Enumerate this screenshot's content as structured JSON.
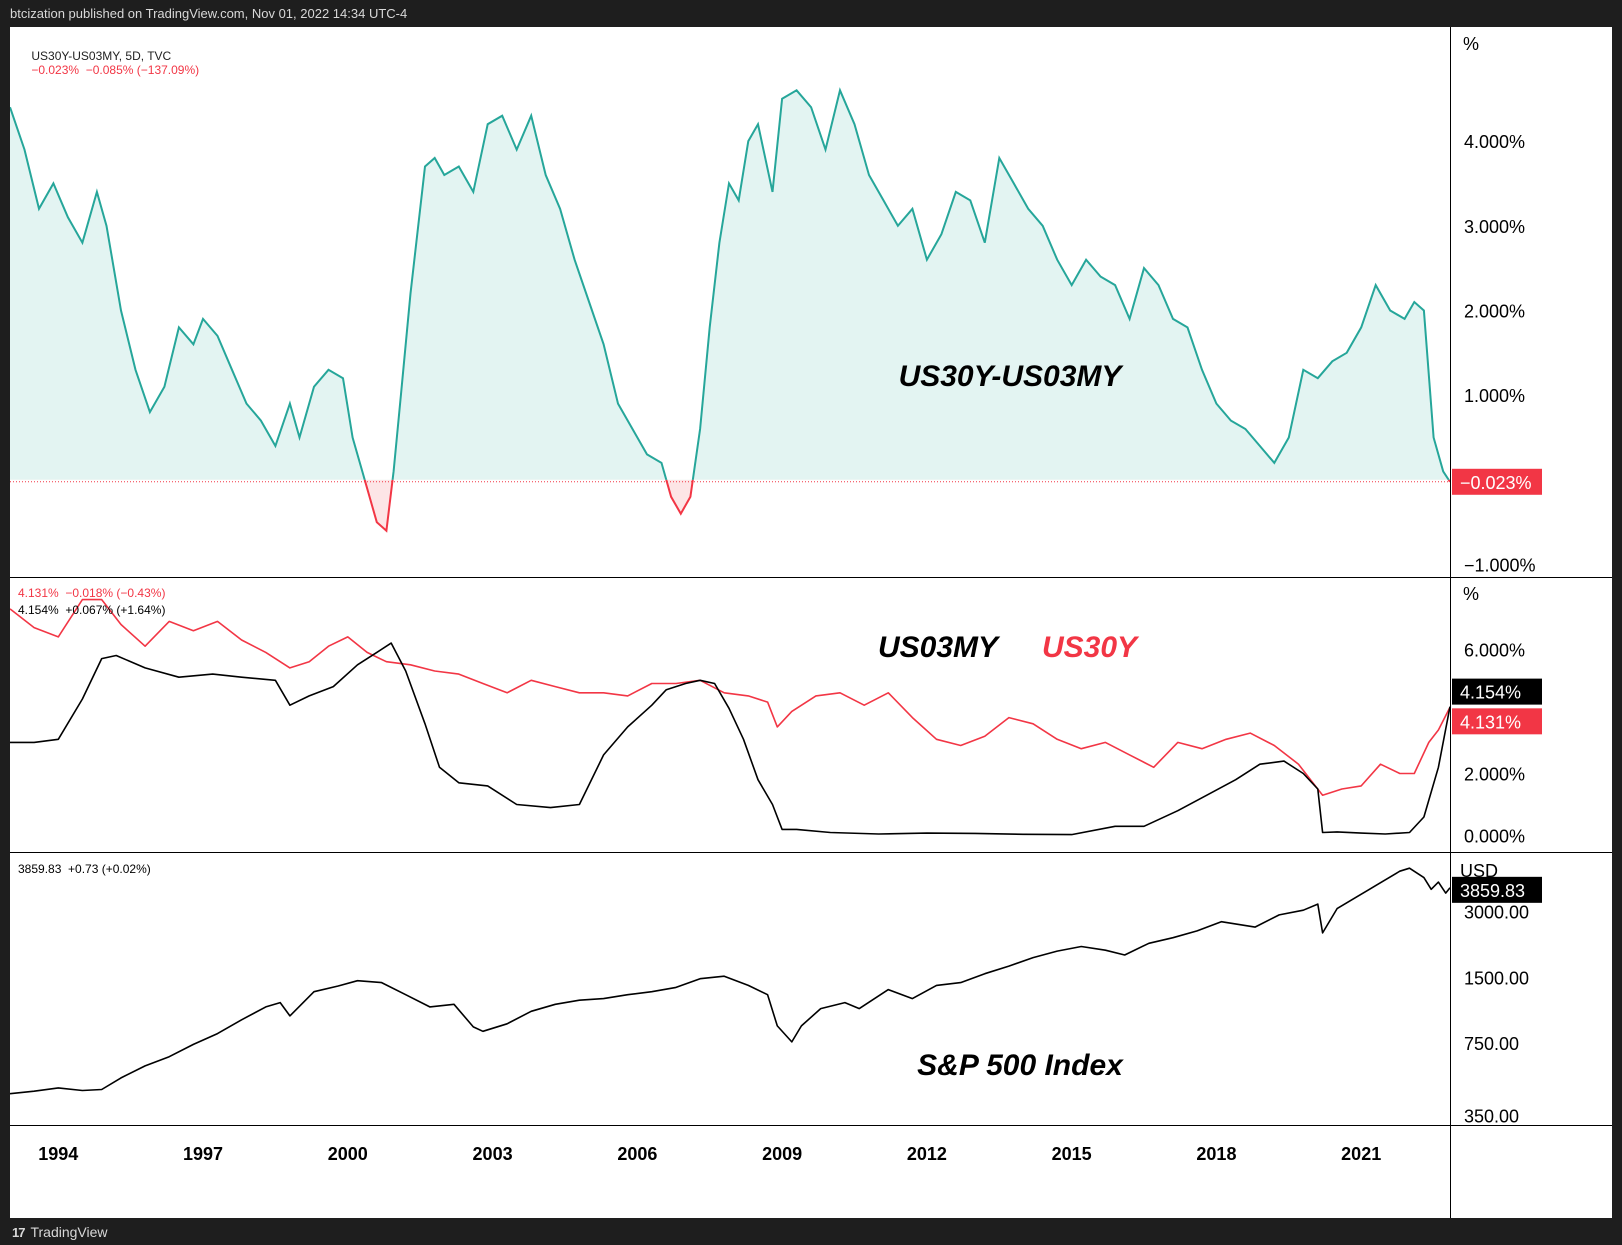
{
  "header": {
    "publish_text": "btcization published on TradingView.com, Nov 01, 2022 14:34 UTC-4"
  },
  "footer": {
    "brand": "TradingView",
    "logo_glyph": "17"
  },
  "colors": {
    "teal": "#26a69a",
    "teal_fill": "#e3f4f2",
    "red": "#f23645",
    "black": "#000000",
    "grid_border": "#000000"
  },
  "x_axis": {
    "start_year": 1993.0,
    "end_year": 2022.84,
    "tick_labels": [
      "1994",
      "1997",
      "2000",
      "2003",
      "2006",
      "2009",
      "2012",
      "2015",
      "2018",
      "2021"
    ],
    "tick_years": [
      1994,
      1997,
      2000,
      2003,
      2006,
      2009,
      2012,
      2015,
      2018,
      2021
    ]
  },
  "chart_data": [
    {
      "type": "area",
      "legend": {
        "symbol": "US30Y-US03MY, 5D, TVC",
        "change": "−0.023%  −0.085% (−137.09%)"
      },
      "annotation": "US30Y-US03MY",
      "unit_label": "%",
      "y_ticks": [
        "4.000%",
        "3.000%",
        "2.000%",
        "1.000%",
        "−1.000%"
      ],
      "y_tick_values": [
        4,
        3,
        2,
        1,
        -1
      ],
      "ylim": [
        -1.1,
        5.3
      ],
      "last_value_label": "−0.023%",
      "last_value": -0.023,
      "series": [
        {
          "x": [
            1993.0,
            1993.3,
            1993.6,
            1993.9,
            1994.2,
            1994.5,
            1994.8,
            1995.0,
            1995.3,
            1995.6,
            1995.9,
            1996.2,
            1996.5,
            1996.8,
            1997.0,
            1997.3,
            1997.6,
            1997.9,
            1998.2,
            1998.5,
            1998.8,
            1999.0,
            1999.3,
            1999.6,
            1999.9,
            2000.1,
            2000.3,
            2000.6,
            2000.8,
            2000.95,
            2001.1,
            2001.3,
            2001.6,
            2001.8,
            2002.0,
            2002.3,
            2002.6,
            2002.9,
            2003.2,
            2003.5,
            2003.8,
            2004.1,
            2004.4,
            2004.7,
            2005.0,
            2005.3,
            2005.6,
            2005.9,
            2006.2,
            2006.5,
            2006.7,
            2006.9,
            2007.1,
            2007.3,
            2007.5,
            2007.7,
            2007.9,
            2008.1,
            2008.3,
            2008.5,
            2008.8,
            2009.0,
            2009.3,
            2009.6,
            2009.9,
            2010.2,
            2010.5,
            2010.8,
            2011.1,
            2011.4,
            2011.7,
            2012.0,
            2012.3,
            2012.6,
            2012.9,
            2013.2,
            2013.5,
            2013.8,
            2014.1,
            2014.4,
            2014.7,
            2015.0,
            2015.3,
            2015.6,
            2015.9,
            2016.2,
            2016.5,
            2016.8,
            2017.1,
            2017.4,
            2017.7,
            2018.0,
            2018.3,
            2018.6,
            2018.9,
            2019.2,
            2019.5,
            2019.8,
            2020.1,
            2020.4,
            2020.7,
            2021.0,
            2021.3,
            2021.6,
            2021.9,
            2022.1,
            2022.3,
            2022.5,
            2022.7,
            2022.84
          ],
          "values": [
            4.4,
            3.9,
            3.2,
            3.5,
            3.1,
            2.8,
            3.4,
            3.0,
            2.0,
            1.3,
            0.8,
            1.1,
            1.8,
            1.6,
            1.9,
            1.7,
            1.3,
            0.9,
            0.7,
            0.4,
            0.9,
            0.5,
            1.1,
            1.3,
            1.2,
            0.5,
            0.1,
            -0.5,
            -0.6,
            0.1,
            1.0,
            2.2,
            3.7,
            3.8,
            3.6,
            3.7,
            3.4,
            4.2,
            4.3,
            3.9,
            4.3,
            3.6,
            3.2,
            2.6,
            2.1,
            1.6,
            0.9,
            0.6,
            0.3,
            0.2,
            -0.2,
            -0.4,
            -0.2,
            0.6,
            1.8,
            2.8,
            3.5,
            3.3,
            4.0,
            4.2,
            3.4,
            4.5,
            4.6,
            4.4,
            3.9,
            4.6,
            4.2,
            3.6,
            3.3,
            3.0,
            3.2,
            2.6,
            2.9,
            3.4,
            3.3,
            2.8,
            3.8,
            3.5,
            3.2,
            3.0,
            2.6,
            2.3,
            2.6,
            2.4,
            2.3,
            1.9,
            2.5,
            2.3,
            1.9,
            1.8,
            1.3,
            0.9,
            0.7,
            0.6,
            0.4,
            0.2,
            0.5,
            1.3,
            1.2,
            1.4,
            1.5,
            1.8,
            2.3,
            2.0,
            1.9,
            2.1,
            2.0,
            0.5,
            0.1,
            -0.023
          ]
        }
      ]
    },
    {
      "type": "line",
      "legend": [
        {
          "value": "4.131%  −0.018% (−0.43%)",
          "color": "#f23645"
        },
        {
          "value": "4.154%  +0.067% (+1.64%)",
          "color": "#000000"
        }
      ],
      "annotations": [
        {
          "text": "US03MY",
          "color": "#000000"
        },
        {
          "text": "US30Y",
          "color": "#f23645"
        }
      ],
      "unit_label": "%",
      "y_ticks": [
        "6.000%",
        "2.000%",
        "0.000%"
      ],
      "y_tick_values": [
        6,
        2,
        0
      ],
      "ylim": [
        -0.4,
        8.2
      ],
      "last_value_labels": [
        {
          "text": "4.154%",
          "value": 4.154,
          "bg": "#000000"
        },
        {
          "text": "4.131%",
          "value": 4.131,
          "bg": "#f23645"
        }
      ],
      "series": [
        {
          "name": "US30Y",
          "color": "#f23645",
          "x": [
            1993.0,
            1993.5,
            1994.0,
            1994.5,
            1994.9,
            1995.3,
            1995.8,
            1996.3,
            1996.8,
            1997.3,
            1997.8,
            1998.3,
            1998.8,
            1999.2,
            1999.6,
            2000.0,
            2000.4,
            2000.8,
            2001.3,
            2001.8,
            2002.3,
            2002.8,
            2003.3,
            2003.8,
            2004.3,
            2004.8,
            2005.3,
            2005.8,
            2006.3,
            2006.8,
            2007.3,
            2007.8,
            2008.3,
            2008.7,
            2008.9,
            2009.2,
            2009.7,
            2010.2,
            2010.7,
            2011.2,
            2011.7,
            2012.2,
            2012.7,
            2013.2,
            2013.7,
            2014.2,
            2014.7,
            2015.2,
            2015.7,
            2016.2,
            2016.7,
            2017.2,
            2017.7,
            2018.2,
            2018.7,
            2019.2,
            2019.7,
            2020.2,
            2020.6,
            2021.0,
            2021.4,
            2021.8,
            2022.1,
            2022.4,
            2022.6,
            2022.84
          ],
          "values": [
            7.3,
            6.7,
            6.4,
            7.6,
            7.6,
            6.8,
            6.1,
            6.9,
            6.6,
            6.9,
            6.3,
            5.9,
            5.4,
            5.6,
            6.1,
            6.4,
            5.9,
            5.6,
            5.5,
            5.3,
            5.2,
            4.9,
            4.6,
            5.0,
            4.8,
            4.6,
            4.6,
            4.5,
            4.9,
            4.9,
            5.0,
            4.6,
            4.5,
            4.3,
            3.5,
            4.0,
            4.5,
            4.6,
            4.2,
            4.6,
            3.8,
            3.1,
            2.9,
            3.2,
            3.8,
            3.6,
            3.1,
            2.8,
            3.0,
            2.6,
            2.2,
            3.0,
            2.8,
            3.1,
            3.3,
            2.9,
            2.3,
            1.3,
            1.5,
            1.6,
            2.3,
            2.0,
            2.0,
            3.0,
            3.4,
            4.131
          ]
        },
        {
          "name": "US03MY",
          "color": "#000000",
          "x": [
            1993.0,
            1993.5,
            1994.0,
            1994.5,
            1994.9,
            1995.2,
            1995.8,
            1996.5,
            1997.2,
            1997.8,
            1998.5,
            1998.8,
            1999.2,
            1999.7,
            2000.2,
            2000.6,
            2000.9,
            2001.2,
            2001.6,
            2001.9,
            2002.3,
            2002.9,
            2003.5,
            2004.2,
            2004.8,
            2005.3,
            2005.8,
            2006.3,
            2006.6,
            2007.0,
            2007.3,
            2007.6,
            2007.9,
            2008.2,
            2008.5,
            2008.8,
            2009.0,
            2009.3,
            2010.0,
            2011.0,
            2012.0,
            2013.0,
            2014.0,
            2015.0,
            2015.9,
            2016.5,
            2017.2,
            2017.8,
            2018.4,
            2018.9,
            2019.4,
            2019.8,
            2020.1,
            2020.2,
            2020.5,
            2021.0,
            2021.5,
            2022.0,
            2022.3,
            2022.6,
            2022.84
          ],
          "values": [
            3.0,
            3.0,
            3.1,
            4.4,
            5.7,
            5.8,
            5.4,
            5.1,
            5.2,
            5.1,
            5.0,
            4.2,
            4.5,
            4.8,
            5.5,
            5.9,
            6.2,
            5.3,
            3.6,
            2.2,
            1.7,
            1.6,
            1.0,
            0.9,
            1.0,
            2.6,
            3.5,
            4.2,
            4.7,
            4.9,
            5.0,
            4.9,
            4.1,
            3.1,
            1.8,
            1.0,
            0.2,
            0.2,
            0.1,
            0.05,
            0.08,
            0.07,
            0.04,
            0.03,
            0.3,
            0.3,
            0.8,
            1.3,
            1.8,
            2.3,
            2.4,
            2.0,
            1.5,
            0.1,
            0.12,
            0.08,
            0.05,
            0.1,
            0.6,
            2.2,
            4.154
          ]
        }
      ]
    },
    {
      "type": "line",
      "legend": {
        "value": "3859.83  +0.73 (+0.02%)"
      },
      "annotation": "S&P 500 Index",
      "unit_label": "USD",
      "y_scale": "log",
      "y_ticks": [
        "3000.00",
        "1500.00",
        "750.00",
        "350.00"
      ],
      "y_tick_values": [
        3000,
        1500,
        750,
        350
      ],
      "ylim": [
        330,
        5400
      ],
      "last_value_label": "3859.83",
      "last_value": 3859.83,
      "series": [
        {
          "name": "S&P 500",
          "color": "#000000",
          "x": [
            1993.0,
            1993.5,
            1994.0,
            1994.5,
            1994.9,
            1995.3,
            1995.8,
            1996.3,
            1996.8,
            1997.3,
            1997.8,
            1998.3,
            1998.6,
            1998.8,
            1999.3,
            1999.8,
            2000.2,
            2000.7,
            2001.2,
            2001.7,
            2002.2,
            2002.6,
            2002.8,
            2003.3,
            2003.8,
            2004.3,
            2004.8,
            2005.3,
            2005.8,
            2006.3,
            2006.8,
            2007.3,
            2007.8,
            2008.3,
            2008.7,
            2008.9,
            2009.2,
            2009.4,
            2009.8,
            2010.3,
            2010.6,
            2011.2,
            2011.7,
            2012.2,
            2012.7,
            2013.2,
            2013.7,
            2014.2,
            2014.7,
            2015.2,
            2015.7,
            2016.1,
            2016.6,
            2017.1,
            2017.6,
            2018.1,
            2018.8,
            2019.3,
            2019.8,
            2020.1,
            2020.2,
            2020.5,
            2020.9,
            2021.3,
            2021.8,
            2022.0,
            2022.3,
            2022.45,
            2022.6,
            2022.75,
            2022.84
          ],
          "values": [
            440,
            452,
            468,
            455,
            460,
            520,
            590,
            650,
            740,
            830,
            960,
            1100,
            1150,
            1000,
            1290,
            1370,
            1450,
            1420,
            1250,
            1100,
            1130,
            890,
            850,
            920,
            1050,
            1130,
            1180,
            1200,
            1250,
            1290,
            1350,
            1480,
            1520,
            1380,
            1250,
            900,
            760,
            900,
            1080,
            1150,
            1080,
            1320,
            1200,
            1380,
            1420,
            1560,
            1690,
            1850,
            1980,
            2080,
            2000,
            1900,
            2150,
            2280,
            2450,
            2700,
            2550,
            2900,
            3050,
            3250,
            2400,
            3100,
            3500,
            3950,
            4600,
            4750,
            4300,
            3800,
            4100,
            3650,
            3859.83
          ]
        }
      ]
    }
  ]
}
